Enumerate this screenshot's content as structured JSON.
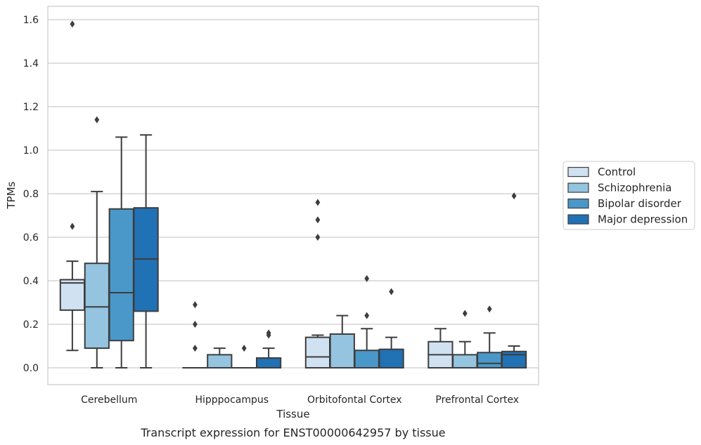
{
  "caption": "Transcript expression for ENST00000642957 by tissue",
  "chart_data": {
    "type": "boxplot",
    "xlabel": "Tissue",
    "ylabel": "TPMs",
    "ylim": [
      -0.075,
      1.66
    ],
    "yticks": [
      "0.0",
      "0.2",
      "0.4",
      "0.6",
      "0.8",
      "1.0",
      "1.2",
      "1.4",
      "1.6"
    ],
    "grid": "horizontal",
    "legend_position": "right",
    "categories": [
      "Cerebellum",
      "Hipppocampus",
      "Orbitofontal Cortex",
      "Prefrontal Cortex"
    ],
    "series": [
      {
        "name": "Control",
        "color": "#d0e1f2",
        "boxes": [
          {
            "q1": 0.265,
            "median": 0.39,
            "q3": 0.405,
            "whisker_low": 0.08,
            "whisker_high": 0.49,
            "outliers": [
              0.65,
              1.58
            ]
          },
          {
            "q1": 0.0,
            "median": 0.0,
            "q3": 0.0,
            "whisker_low": 0.0,
            "whisker_high": 0.0,
            "outliers": [
              0.09,
              0.2,
              0.29
            ]
          },
          {
            "q1": 0.0,
            "median": 0.05,
            "q3": 0.14,
            "whisker_low": 0.0,
            "whisker_high": 0.15,
            "outliers": [
              0.6,
              0.68,
              0.76
            ]
          },
          {
            "q1": 0.0,
            "median": 0.06,
            "q3": 0.12,
            "whisker_low": 0.0,
            "whisker_high": 0.18,
            "outliers": []
          }
        ]
      },
      {
        "name": "Schizophrenia",
        "color": "#94c4df",
        "boxes": [
          {
            "q1": 0.09,
            "median": 0.28,
            "q3": 0.48,
            "whisker_low": 0.0,
            "whisker_high": 0.81,
            "outliers": [
              1.14
            ]
          },
          {
            "q1": 0.0,
            "median": 0.0,
            "q3": 0.06,
            "whisker_low": 0.0,
            "whisker_high": 0.09,
            "outliers": []
          },
          {
            "q1": 0.0,
            "median": 0.0,
            "q3": 0.155,
            "whisker_low": 0.0,
            "whisker_high": 0.24,
            "outliers": []
          },
          {
            "q1": 0.0,
            "median": 0.0,
            "q3": 0.06,
            "whisker_low": 0.0,
            "whisker_high": 0.12,
            "outliers": [
              0.25
            ]
          }
        ]
      },
      {
        "name": "Bipolar disorder",
        "color": "#4a98c9",
        "boxes": [
          {
            "q1": 0.125,
            "median": 0.345,
            "q3": 0.73,
            "whisker_low": 0.0,
            "whisker_high": 1.06,
            "outliers": []
          },
          {
            "q1": 0.0,
            "median": 0.0,
            "q3": 0.0,
            "whisker_low": 0.0,
            "whisker_high": 0.0,
            "outliers": [
              0.09
            ]
          },
          {
            "q1": 0.0,
            "median": 0.0,
            "q3": 0.08,
            "whisker_low": 0.0,
            "whisker_high": 0.18,
            "outliers": [
              0.24,
              0.41
            ]
          },
          {
            "q1": 0.0,
            "median": 0.02,
            "q3": 0.07,
            "whisker_low": 0.0,
            "whisker_high": 0.16,
            "outliers": [
              0.27
            ]
          }
        ]
      },
      {
        "name": "Major depression",
        "color": "#2171b5",
        "boxes": [
          {
            "q1": 0.26,
            "median": 0.5,
            "q3": 0.735,
            "whisker_low": 0.0,
            "whisker_high": 1.07,
            "outliers": []
          },
          {
            "q1": 0.0,
            "median": 0.0,
            "q3": 0.045,
            "whisker_low": 0.0,
            "whisker_high": 0.09,
            "outliers": [
              0.15,
              0.16
            ]
          },
          {
            "q1": 0.0,
            "median": 0.0,
            "q3": 0.085,
            "whisker_low": 0.0,
            "whisker_high": 0.14,
            "outliers": [
              0.35
            ]
          },
          {
            "q1": 0.0,
            "median": 0.06,
            "q3": 0.075,
            "whisker_low": 0.0,
            "whisker_high": 0.1,
            "outliers": [
              0.79
            ]
          }
        ]
      }
    ]
  }
}
